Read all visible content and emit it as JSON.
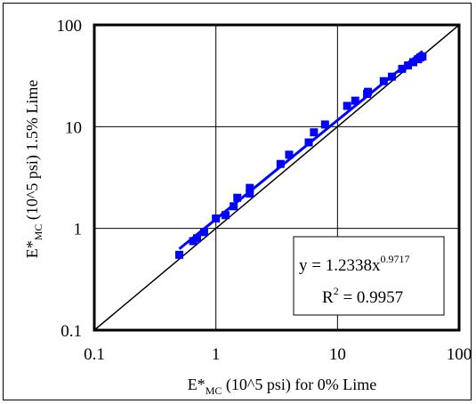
{
  "chart_data": {
    "type": "scatter",
    "x_scale": "log",
    "y_scale": "log",
    "xlim": [
      0.1,
      100
    ],
    "ylim": [
      0.1,
      100
    ],
    "grid": true,
    "x_ticks": [
      "0.1",
      "1",
      "10",
      "100"
    ],
    "y_ticks": [
      "0.1",
      "1",
      "10",
      "100"
    ],
    "xlabel": {
      "main": "E*",
      "sub": "MC",
      "rest": " (10^5 psi) for 0% Lime"
    },
    "ylabel": {
      "main": "E*",
      "sub": "MC",
      "rest": " (10^5 psi) 1.5% Lime"
    },
    "series": [
      {
        "marker": "square",
        "color": "#0000ff",
        "points": [
          [
            0.5,
            0.55
          ],
          [
            0.65,
            0.75
          ],
          [
            0.7,
            0.8
          ],
          [
            0.8,
            0.92
          ],
          [
            1.0,
            1.25
          ],
          [
            1.2,
            1.35
          ],
          [
            1.4,
            1.65
          ],
          [
            1.5,
            2.0
          ],
          [
            1.9,
            2.2
          ],
          [
            1.9,
            2.5
          ],
          [
            3.4,
            4.3
          ],
          [
            4.0,
            5.3
          ],
          [
            5.8,
            7.0
          ],
          [
            6.4,
            8.8
          ],
          [
            7.9,
            10.5
          ],
          [
            12.0,
            16.0
          ],
          [
            14.0,
            18.0
          ],
          [
            17.5,
            21.0
          ],
          [
            17.8,
            22.0
          ],
          [
            24.0,
            28.0
          ],
          [
            28.0,
            31.0
          ],
          [
            34.0,
            37.0
          ],
          [
            38.0,
            40.0
          ],
          [
            42.0,
            43.0
          ],
          [
            46.0,
            46.0
          ],
          [
            48.0,
            48.0
          ],
          [
            50.0,
            49.0
          ]
        ]
      }
    ],
    "fit_line": {
      "coef": 1.2338,
      "exp": 0.9717,
      "x_range": [
        0.5,
        50
      ],
      "color": "#0000ff"
    },
    "identity_line": {
      "x_range": [
        0.1,
        100
      ],
      "color": "#000000"
    },
    "annotation": {
      "eq_prefix": "y = 1.2338x",
      "eq_exponent": "0.9717",
      "r2_prefix": "R",
      "r2_exponent": "2",
      "r2_suffix": " = 0.9957"
    }
  }
}
